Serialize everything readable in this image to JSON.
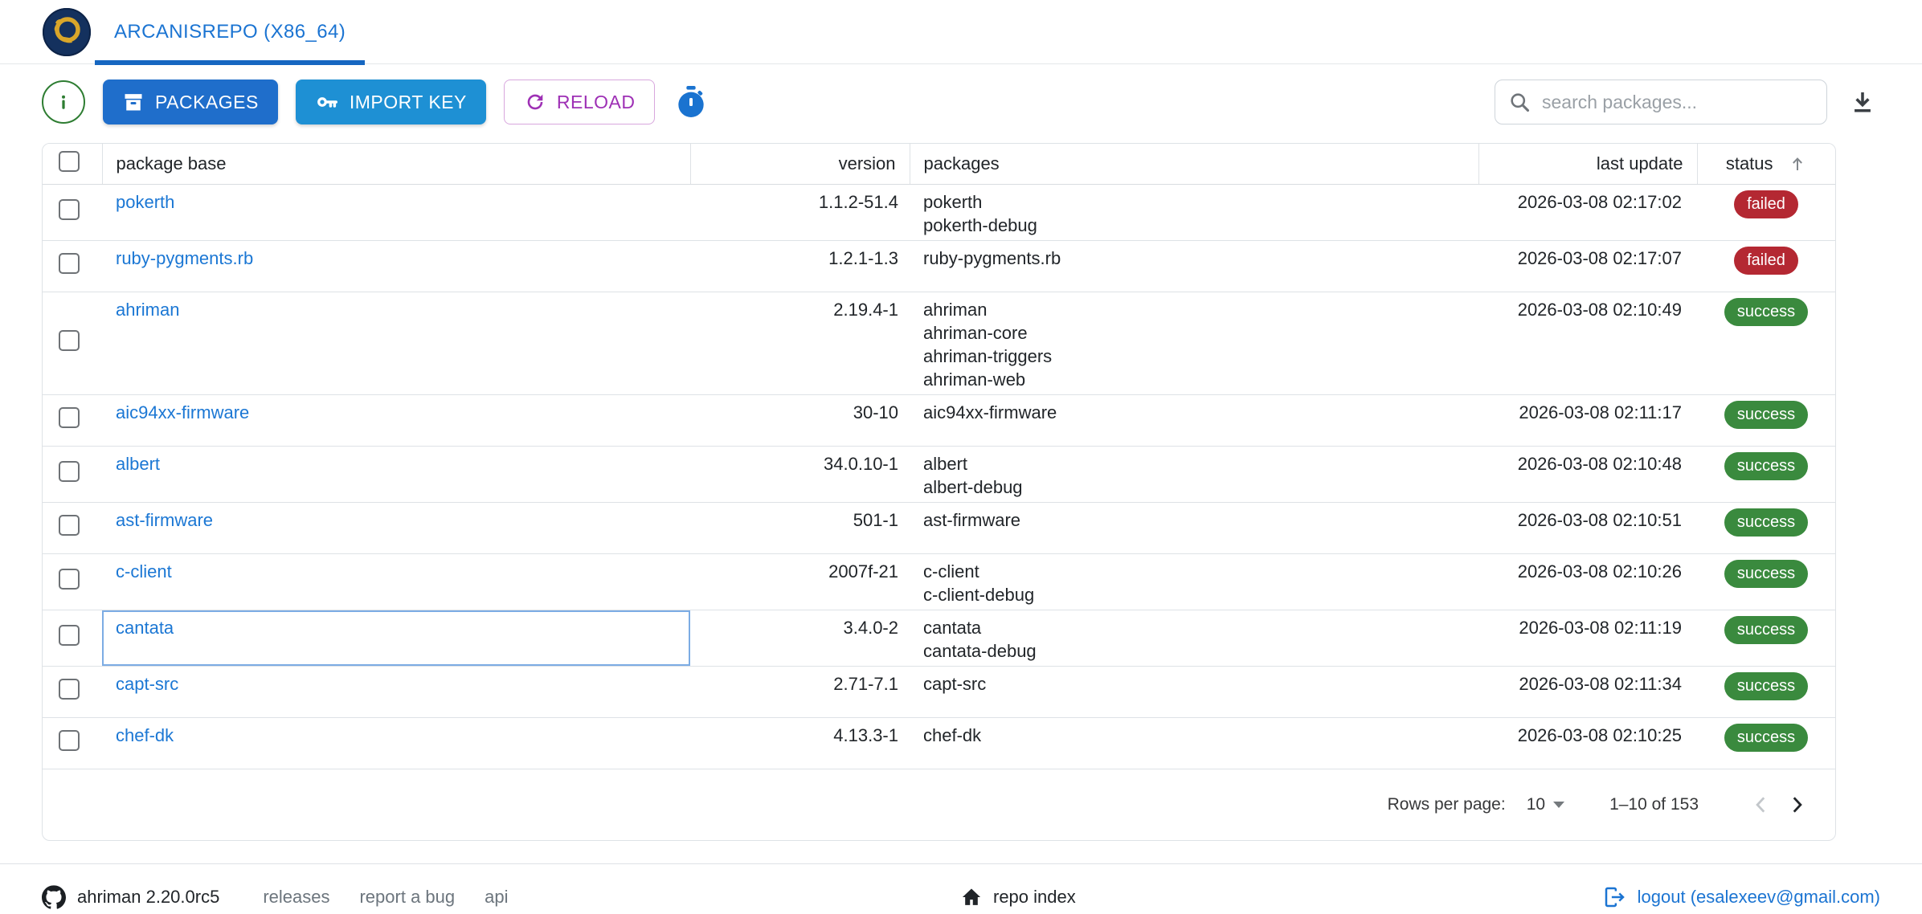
{
  "navbar": {
    "tab_label": "ARCANISREPO (X86_64)"
  },
  "toolbar": {
    "packages_label": "PACKAGES",
    "import_key_label": "IMPORT KEY",
    "reload_label": "RELOAD",
    "search_placeholder": "search packages..."
  },
  "table": {
    "columns": {
      "package_base": "package base",
      "version": "version",
      "packages": "packages",
      "last_update": "last update",
      "status": "status"
    },
    "rows": [
      {
        "base": "pokerth",
        "version": "1.1.2-51.4",
        "packages": [
          "pokerth",
          "pokerth-debug"
        ],
        "last_update": "2026-03-08 02:17:02",
        "status": "failed"
      },
      {
        "base": "ruby-pygments.rb",
        "version": "1.2.1-1.3",
        "packages": [
          "ruby-pygments.rb"
        ],
        "last_update": "2026-03-08 02:17:07",
        "status": "failed"
      },
      {
        "base": "ahriman",
        "version": "2.19.4-1",
        "packages": [
          "ahriman",
          "ahriman-core",
          "ahriman-triggers",
          "ahriman-web"
        ],
        "last_update": "2026-03-08 02:10:49",
        "status": "success"
      },
      {
        "base": "aic94xx-firmware",
        "version": "30-10",
        "packages": [
          "aic94xx-firmware"
        ],
        "last_update": "2026-03-08 02:11:17",
        "status": "success"
      },
      {
        "base": "albert",
        "version": "34.0.10-1",
        "packages": [
          "albert",
          "albert-debug"
        ],
        "last_update": "2026-03-08 02:10:48",
        "status": "success"
      },
      {
        "base": "ast-firmware",
        "version": "501-1",
        "packages": [
          "ast-firmware"
        ],
        "last_update": "2026-03-08 02:10:51",
        "status": "success"
      },
      {
        "base": "c-client",
        "version": "2007f-21",
        "packages": [
          "c-client",
          "c-client-debug"
        ],
        "last_update": "2026-03-08 02:10:26",
        "status": "success"
      },
      {
        "base": "cantata",
        "version": "3.4.0-2",
        "packages": [
          "cantata",
          "cantata-debug"
        ],
        "last_update": "2026-03-08 02:11:19",
        "status": "success",
        "focused": true
      },
      {
        "base": "capt-src",
        "version": "2.71-7.1",
        "packages": [
          "capt-src"
        ],
        "last_update": "2026-03-08 02:11:34",
        "status": "success"
      },
      {
        "base": "chef-dk",
        "version": "4.13.3-1",
        "packages": [
          "chef-dk"
        ],
        "last_update": "2026-03-08 02:10:25",
        "status": "success"
      }
    ]
  },
  "pagination": {
    "rows_per_page_label": "Rows per page:",
    "rows_per_page_value": "10",
    "range_label": "1–10 of 153"
  },
  "footer": {
    "version_label": "ahriman 2.20.0rc5",
    "links": [
      "releases",
      "report a bug",
      "api"
    ],
    "repo_index_label": "repo index",
    "logout_label": "logout (esalexeev@gmail.com)"
  },
  "icons": {
    "logo": "ouroboros-logo",
    "info": "info-icon",
    "packages": "archive-icon",
    "import_key": "key-icon",
    "reload": "refresh-icon",
    "timer": "stopwatch-icon",
    "search": "search-icon",
    "download": "download-icon",
    "sort": "sort-up-icon",
    "github": "github-icon",
    "home": "home-icon",
    "logout": "logout-icon"
  },
  "colors": {
    "link_blue": "#1b74d2",
    "tab_underline": "#1667c1",
    "packages_button": "#1f6ecb",
    "import_button": "#1e90d4",
    "reload_purple": "#9e30b5",
    "info_green": "#2e7d32",
    "timer_blue": "#1a73d0",
    "failed": "#b42832",
    "success": "#3a8a3e",
    "logo_navy": "#14315e",
    "logo_gold": "#d9a62a"
  }
}
